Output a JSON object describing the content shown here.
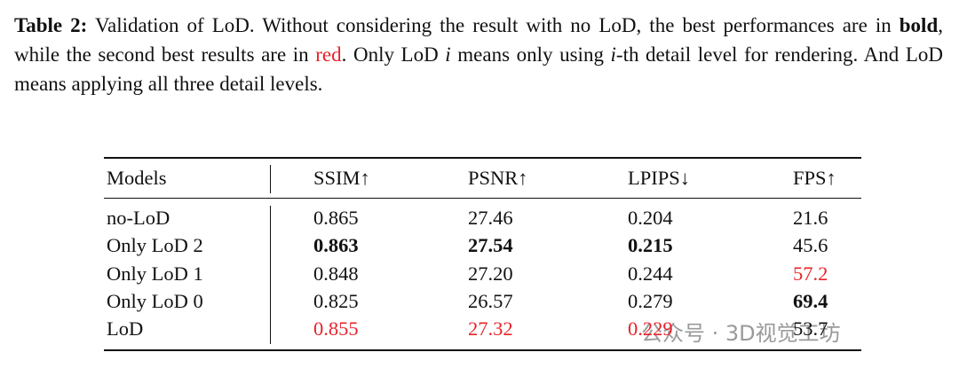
{
  "caption": [
    {
      "text": "Table 2:",
      "style": "bold"
    },
    {
      "text": " Validation of LoD. Without considering the result with no LoD, the best performances are in "
    },
    {
      "text": "bold",
      "style": "bold"
    },
    {
      "text": ", while the second best results are in "
    },
    {
      "text": "red",
      "style": "red"
    },
    {
      "text": ". Only LoD "
    },
    {
      "text": "i",
      "style": "italic"
    },
    {
      "text": " means only using "
    },
    {
      "text": "i",
      "style": "italic"
    },
    {
      "text": "-th detail level for rendering. And LoD means applying all three detail levels."
    }
  ],
  "table": {
    "header": [
      "Models",
      "SSIM↑",
      "PSNR↑",
      "LPIPS↓",
      "FPS↑"
    ],
    "rows": [
      [
        "no-LoD",
        "0.865",
        "27.46",
        "0.204",
        "21.6"
      ],
      [
        "Only LoD 2",
        {
          "text": "0.863",
          "style": "bold"
        },
        {
          "text": "27.54",
          "style": "bold"
        },
        {
          "text": "0.215",
          "style": "bold"
        },
        "45.6"
      ],
      [
        "Only LoD 1",
        "0.848",
        "27.20",
        "0.244",
        {
          "text": "57.2",
          "style": "red"
        }
      ],
      [
        "Only LoD 0",
        "0.825",
        "26.57",
        "0.279",
        {
          "text": "69.4",
          "style": "bold"
        }
      ],
      [
        "LoD",
        {
          "text": "0.855",
          "style": "red"
        },
        {
          "text": "27.32",
          "style": "red"
        },
        {
          "text": "0.229",
          "style": "red"
        },
        "53.7"
      ]
    ]
  },
  "watermark": "公众号 · 3D视觉工坊"
}
